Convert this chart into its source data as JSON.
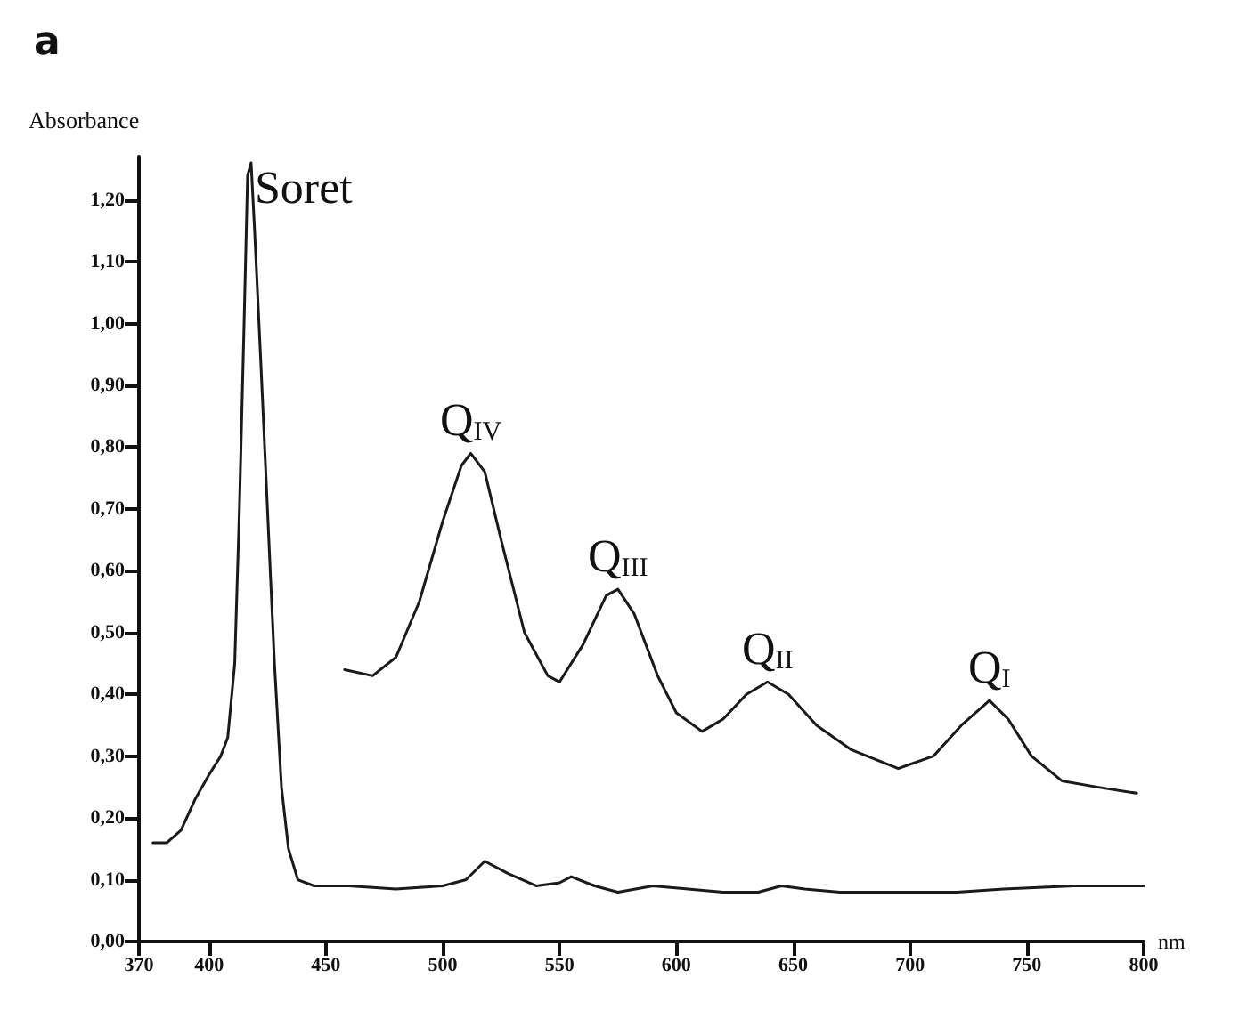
{
  "chart_data": {
    "type": "line",
    "title": "a",
    "xlabel": "nm",
    "ylabel": "Absorbance",
    "xlim": [
      370,
      800
    ],
    "xticks": [
      370,
      400,
      450,
      500,
      550,
      600,
      650,
      700,
      750,
      800
    ],
    "ylim": [
      0,
      1.27
    ],
    "yticks": [
      {
        "value": 0,
        "label": "0,00"
      },
      {
        "value": 0.1,
        "label": "0,10"
      },
      {
        "value": 0.2,
        "label": "0,20"
      },
      {
        "value": 0.3,
        "label": "0,30"
      },
      {
        "value": 0.4,
        "label": "0,40"
      },
      {
        "value": 0.5,
        "label": "0,50"
      },
      {
        "value": 0.6,
        "label": "0,60"
      },
      {
        "value": 0.7,
        "label": "0,70"
      },
      {
        "value": 0.8,
        "label": "0,80"
      },
      {
        "value": 0.9,
        "label": "0,90"
      },
      {
        "value": 1.0,
        "label": "1,00"
      },
      {
        "value": 1.1,
        "label": "1,10"
      },
      {
        "value": 1.2,
        "label": "1,20"
      }
    ],
    "grid": false,
    "marker": "none",
    "series": [
      {
        "color": "#1a1a1a",
        "x": [
          376,
          382,
          388,
          394,
          400,
          405,
          408,
          411,
          413,
          415,
          416.5,
          418,
          419.5,
          422,
          425,
          428,
          431,
          434,
          438,
          445,
          460,
          480,
          500,
          510,
          518,
          528,
          540,
          550,
          555,
          565,
          575,
          590,
          605,
          620,
          635,
          645,
          655,
          670,
          700,
          720,
          740,
          770,
          800
        ],
        "values": [
          0.16,
          0.16,
          0.18,
          0.23,
          0.27,
          0.3,
          0.33,
          0.45,
          0.7,
          1.0,
          1.24,
          1.26,
          1.15,
          0.95,
          0.7,
          0.45,
          0.25,
          0.15,
          0.1,
          0.09,
          0.09,
          0.085,
          0.09,
          0.1,
          0.13,
          0.11,
          0.09,
          0.095,
          0.105,
          0.09,
          0.08,
          0.09,
          0.085,
          0.08,
          0.08,
          0.09,
          0.085,
          0.08,
          0.08,
          0.08,
          0.085,
          0.09,
          0.09
        ]
      },
      {
        "color": "#1a1a1a",
        "x": [
          458,
          470,
          480,
          490,
          500,
          508,
          512,
          518,
          525,
          535,
          545,
          550,
          560,
          570,
          575,
          582,
          592,
          600,
          611,
          620,
          630,
          639,
          648,
          660,
          675,
          695,
          710,
          722,
          734,
          742,
          752,
          765,
          780,
          797
        ],
        "values": [
          0.44,
          0.43,
          0.46,
          0.55,
          0.68,
          0.77,
          0.79,
          0.76,
          0.65,
          0.5,
          0.43,
          0.42,
          0.48,
          0.56,
          0.57,
          0.53,
          0.43,
          0.37,
          0.34,
          0.36,
          0.4,
          0.42,
          0.4,
          0.35,
          0.31,
          0.28,
          0.3,
          0.35,
          0.39,
          0.36,
          0.3,
          0.26,
          0.25,
          0.24
        ]
      }
    ],
    "annotations": [
      {
        "text": "Soret",
        "x": 418,
        "y": 1.26
      },
      {
        "text": "Q$_{IV}$",
        "x": 512,
        "y": 0.79
      },
      {
        "text": "Q$_{III}$",
        "x": 575,
        "y": 0.57
      },
      {
        "text": "Q$_{II}$",
        "x": 639,
        "y": 0.42
      },
      {
        "text": "Q$_{I}$",
        "x": 734,
        "y": 0.39
      }
    ]
  }
}
